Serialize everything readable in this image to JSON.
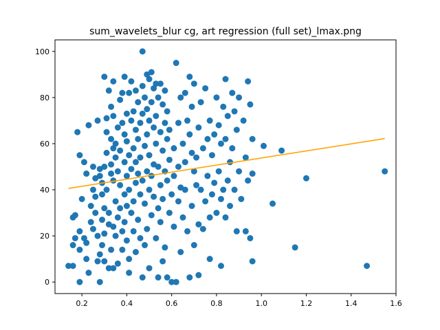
{
  "chart_data": {
    "type": "scatter",
    "title": "sum_wavelets_blur cg, art regression (full set)_lmax.png",
    "xlabel": "",
    "ylabel": "",
    "xlim": [
      0.08,
      1.6
    ],
    "ylim": [
      -5,
      105
    ],
    "xticks": [
      0.2,
      0.4,
      0.6,
      0.8,
      1.0,
      1.2,
      1.4,
      1.6
    ],
    "xtick_labels": [
      "0.2",
      "0.4",
      "0.6",
      "0.8",
      "1.0",
      "1.2",
      "1.4",
      "1.6"
    ],
    "yticks": [
      0,
      20,
      40,
      60,
      80,
      100
    ],
    "ytick_labels": [
      "0",
      "20",
      "40",
      "60",
      "80",
      "100"
    ],
    "grid": false,
    "legend": "none",
    "colors": {
      "points": "#1f77b4",
      "regression_line": "#ffa500"
    },
    "regression_line": {
      "x": [
        0.14,
        1.55
      ],
      "y": [
        40.6,
        62.2
      ]
    },
    "points": [
      [
        0.14,
        7
      ],
      [
        0.16,
        7
      ],
      [
        0.16,
        16
      ],
      [
        0.16,
        28
      ],
      [
        0.17,
        29
      ],
      [
        0.17,
        19
      ],
      [
        0.18,
        65
      ],
      [
        0.19,
        55
      ],
      [
        0.19,
        0
      ],
      [
        0.19,
        22
      ],
      [
        0.19,
        14
      ],
      [
        0.2,
        36
      ],
      [
        0.21,
        52
      ],
      [
        0.21,
        19
      ],
      [
        0.22,
        17
      ],
      [
        0.22,
        10
      ],
      [
        0.22,
        47
      ],
      [
        0.23,
        68
      ],
      [
        0.23,
        4
      ],
      [
        0.24,
        26
      ],
      [
        0.24,
        33
      ],
      [
        0.25,
        50
      ],
      [
        0.25,
        40
      ],
      [
        0.25,
        23
      ],
      [
        0.26,
        37
      ],
      [
        0.26,
        30
      ],
      [
        0.26,
        45
      ],
      [
        0.27,
        70
      ],
      [
        0.27,
        20
      ],
      [
        0.27,
        9
      ],
      [
        0.28,
        0
      ],
      [
        0.28,
        46
      ],
      [
        0.28,
        49
      ],
      [
        0.28,
        12
      ],
      [
        0.29,
        27
      ],
      [
        0.29,
        38
      ],
      [
        0.29,
        43
      ],
      [
        0.29,
        16
      ],
      [
        0.3,
        89
      ],
      [
        0.3,
        50
      ],
      [
        0.3,
        32
      ],
      [
        0.3,
        21
      ],
      [
        0.3,
        9
      ],
      [
        0.31,
        71
      ],
      [
        0.31,
        56
      ],
      [
        0.31,
        65
      ],
      [
        0.31,
        40
      ],
      [
        0.32,
        83
      ],
      [
        0.32,
        30
      ],
      [
        0.32,
        25
      ],
      [
        0.32,
        6
      ],
      [
        0.33,
        76
      ],
      [
        0.33,
        62
      ],
      [
        0.33,
        51
      ],
      [
        0.33,
        47
      ],
      [
        0.33,
        14
      ],
      [
        0.34,
        87
      ],
      [
        0.34,
        72
      ],
      [
        0.34,
        58
      ],
      [
        0.34,
        44
      ],
      [
        0.34,
        24
      ],
      [
        0.34,
        6
      ],
      [
        0.35,
        60
      ],
      [
        0.35,
        35
      ],
      [
        0.35,
        54
      ],
      [
        0.35,
        20
      ],
      [
        0.36,
        67
      ],
      [
        0.36,
        48
      ],
      [
        0.36,
        28
      ],
      [
        0.36,
        8
      ],
      [
        0.37,
        79
      ],
      [
        0.37,
        57
      ],
      [
        0.37,
        42
      ],
      [
        0.37,
        32
      ],
      [
        0.38,
        82
      ],
      [
        0.38,
        69
      ],
      [
        0.38,
        22
      ],
      [
        0.38,
        14
      ],
      [
        0.39,
        89
      ],
      [
        0.39,
        64
      ],
      [
        0.39,
        52
      ],
      [
        0.39,
        38
      ],
      [
        0.39,
        26
      ],
      [
        0.4,
        73
      ],
      [
        0.4,
        61
      ],
      [
        0.4,
        46
      ],
      [
        0.4,
        33
      ],
      [
        0.4,
        18
      ],
      [
        0.41,
        82
      ],
      [
        0.41,
        55
      ],
      [
        0.41,
        40
      ],
      [
        0.41,
        10
      ],
      [
        0.41,
        4
      ],
      [
        0.42,
        87
      ],
      [
        0.42,
        70
      ],
      [
        0.42,
        49
      ],
      [
        0.42,
        30
      ],
      [
        0.43,
        74
      ],
      [
        0.43,
        58
      ],
      [
        0.43,
        35
      ],
      [
        0.43,
        22
      ],
      [
        0.44,
        83
      ],
      [
        0.44,
        66
      ],
      [
        0.44,
        52
      ],
      [
        0.44,
        43
      ],
      [
        0.44,
        13
      ],
      [
        0.45,
        78
      ],
      [
        0.45,
        62
      ],
      [
        0.45,
        47
      ],
      [
        0.45,
        27
      ],
      [
        0.46,
        69
      ],
      [
        0.46,
        54
      ],
      [
        0.46,
        38
      ],
      [
        0.46,
        19
      ],
      [
        0.47,
        100
      ],
      [
        0.47,
        85
      ],
      [
        0.47,
        73
      ],
      [
        0.47,
        44
      ],
      [
        0.47,
        2
      ],
      [
        0.48,
        80
      ],
      [
        0.48,
        59
      ],
      [
        0.48,
        34
      ],
      [
        0.48,
        16
      ],
      [
        0.49,
        90
      ],
      [
        0.49,
        75
      ],
      [
        0.49,
        64
      ],
      [
        0.49,
        48
      ],
      [
        0.49,
        23
      ],
      [
        0.5,
        88
      ],
      [
        0.5,
        70
      ],
      [
        0.5,
        55
      ],
      [
        0.5,
        40
      ],
      [
        0.5,
        6
      ],
      [
        0.51,
        91
      ],
      [
        0.51,
        78
      ],
      [
        0.51,
        46
      ],
      [
        0.51,
        29
      ],
      [
        0.52,
        84
      ],
      [
        0.52,
        67
      ],
      [
        0.52,
        51
      ],
      [
        0.52,
        37
      ],
      [
        0.53,
        86
      ],
      [
        0.53,
        72
      ],
      [
        0.53,
        60
      ],
      [
        0.53,
        19
      ],
      [
        0.54,
        80
      ],
      [
        0.54,
        50
      ],
      [
        0.54,
        32
      ],
      [
        0.54,
        2
      ],
      [
        0.55,
        86
      ],
      [
        0.55,
        65
      ],
      [
        0.55,
        42
      ],
      [
        0.55,
        26
      ],
      [
        0.56,
        77
      ],
      [
        0.56,
        57
      ],
      [
        0.56,
        36
      ],
      [
        0.56,
        9
      ],
      [
        0.57,
        83
      ],
      [
        0.57,
        69
      ],
      [
        0.57,
        48
      ],
      [
        0.57,
        15
      ],
      [
        0.58,
        74
      ],
      [
        0.58,
        62
      ],
      [
        0.58,
        44
      ],
      [
        0.58,
        2
      ],
      [
        0.59,
        66
      ],
      [
        0.59,
        53
      ],
      [
        0.59,
        30
      ],
      [
        0.6,
        0
      ],
      [
        0.6,
        38
      ],
      [
        0.61,
        58
      ],
      [
        0.61,
        46
      ],
      [
        0.61,
        24
      ],
      [
        0.62,
        95
      ],
      [
        0.62,
        0
      ],
      [
        0.63,
        69
      ],
      [
        0.63,
        50
      ],
      [
        0.63,
        35
      ],
      [
        0.64,
        80
      ],
      [
        0.64,
        41
      ],
      [
        0.64,
        13
      ],
      [
        0.65,
        60
      ],
      [
        0.65,
        28
      ],
      [
        0.66,
        82
      ],
      [
        0.66,
        52
      ],
      [
        0.66,
        40
      ],
      [
        0.67,
        70
      ],
      [
        0.67,
        22
      ],
      [
        0.68,
        89
      ],
      [
        0.68,
        64
      ],
      [
        0.68,
        2
      ],
      [
        0.69,
        76
      ],
      [
        0.69,
        56
      ],
      [
        0.69,
        33
      ],
      [
        0.7,
        86
      ],
      [
        0.7,
        48
      ],
      [
        0.7,
        16
      ],
      [
        0.71,
        54
      ],
      [
        0.71,
        42
      ],
      [
        0.72,
        67
      ],
      [
        0.72,
        25
      ],
      [
        0.72,
        3
      ],
      [
        0.73,
        78
      ],
      [
        0.73,
        40
      ],
      [
        0.74,
        58
      ],
      [
        0.74,
        23
      ],
      [
        0.75,
        84
      ],
      [
        0.75,
        35
      ],
      [
        0.76,
        62
      ],
      [
        0.76,
        46
      ],
      [
        0.77,
        70
      ],
      [
        0.77,
        28
      ],
      [
        0.77,
        10
      ],
      [
        0.78,
        55
      ],
      [
        0.78,
        38
      ],
      [
        0.79,
        64
      ],
      [
        0.79,
        43
      ],
      [
        0.8,
        80
      ],
      [
        0.8,
        30
      ],
      [
        0.81,
        68
      ],
      [
        0.81,
        48
      ],
      [
        0.82,
        60
      ],
      [
        0.82,
        36
      ],
      [
        0.82,
        7
      ],
      [
        0.83,
        76
      ],
      [
        0.83,
        40
      ],
      [
        0.84,
        88
      ],
      [
        0.84,
        62
      ],
      [
        0.84,
        28
      ],
      [
        0.85,
        72
      ],
      [
        0.85,
        44
      ],
      [
        0.86,
        52
      ],
      [
        0.86,
        33
      ],
      [
        0.87,
        82
      ],
      [
        0.87,
        58
      ],
      [
        0.88,
        74
      ],
      [
        0.88,
        40
      ],
      [
        0.89,
        66
      ],
      [
        0.89,
        22
      ],
      [
        0.9,
        80
      ],
      [
        0.9,
        48
      ],
      [
        0.91,
        36
      ],
      [
        0.92,
        70
      ],
      [
        0.93,
        54
      ],
      [
        0.93,
        22
      ],
      [
        0.94,
        87
      ],
      [
        0.94,
        44
      ],
      [
        0.95,
        77
      ],
      [
        0.95,
        19
      ],
      [
        0.96,
        62
      ],
      [
        0.96,
        9
      ],
      [
        0.96,
        47
      ],
      [
        1.01,
        59
      ],
      [
        1.05,
        34
      ],
      [
        1.09,
        57
      ],
      [
        1.15,
        15
      ],
      [
        1.2,
        45
      ],
      [
        1.47,
        7
      ],
      [
        1.55,
        48
      ]
    ]
  }
}
